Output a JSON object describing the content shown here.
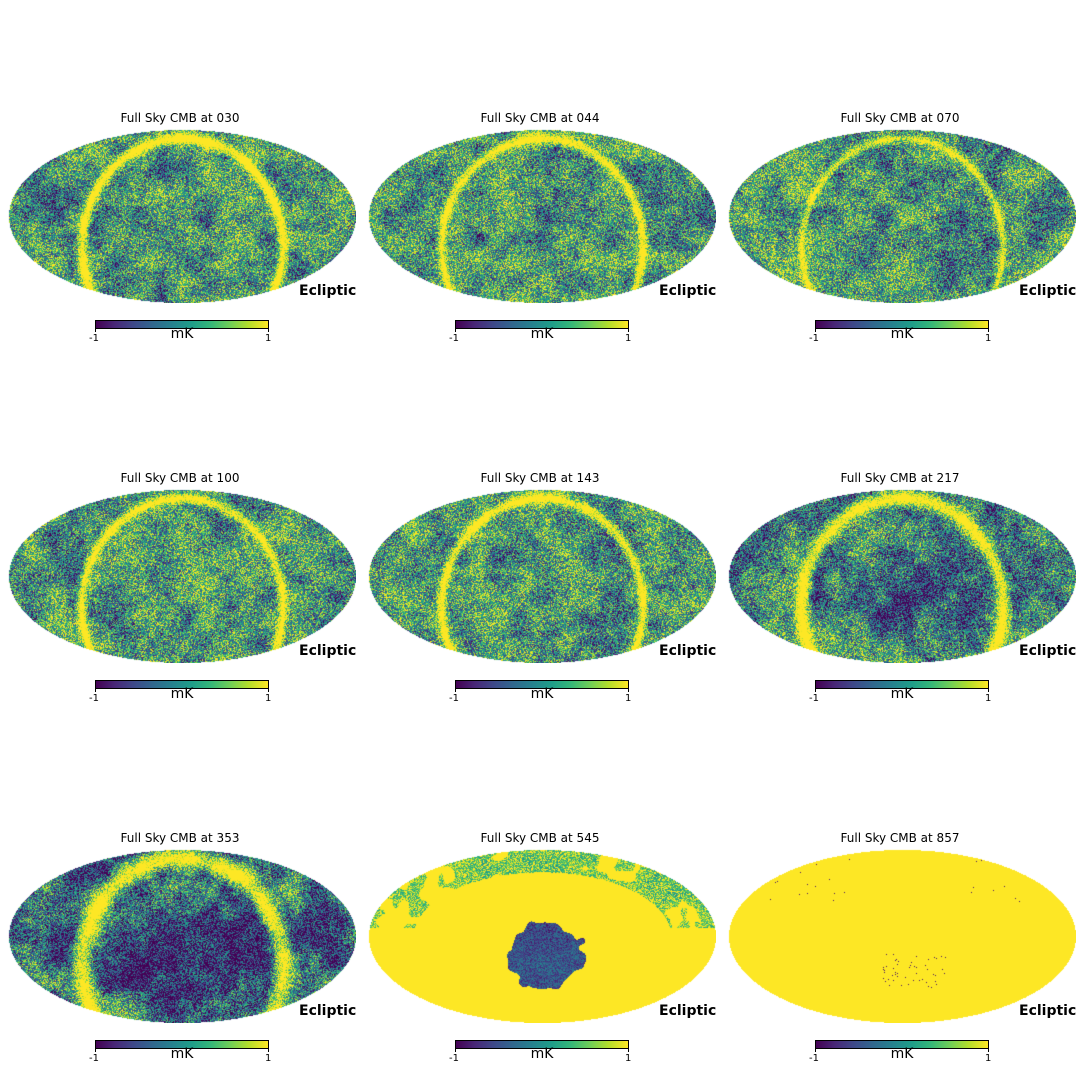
{
  "colormap": [
    "#440154",
    "#482878",
    "#3e4a89",
    "#31688e",
    "#26828e",
    "#1f9e89",
    "#35b779",
    "#6ece58",
    "#b5de2b",
    "#fde725"
  ],
  "panels": [
    {
      "title": "Full Sky CMB at 030",
      "projection_label": "Ecliptic",
      "unit": "mK",
      "min_label": "-1",
      "max_label": "1",
      "yellow_level": 0.14,
      "dark_level": 0.1,
      "band_strength": 1.0,
      "band_width": 1.0
    },
    {
      "title": "Full Sky CMB at 044",
      "projection_label": "Ecliptic",
      "unit": "mK",
      "min_label": "-1",
      "max_label": "1",
      "yellow_level": 0.16,
      "dark_level": 0.06,
      "band_strength": 0.85,
      "band_width": 0.85
    },
    {
      "title": "Full Sky CMB at 070",
      "projection_label": "Ecliptic",
      "unit": "mK",
      "min_label": "-1",
      "max_label": "1",
      "yellow_level": 0.16,
      "dark_level": 0.06,
      "band_strength": 0.7,
      "band_width": 0.7
    },
    {
      "title": "Full Sky CMB at 100",
      "projection_label": "Ecliptic",
      "unit": "mK",
      "min_label": "-1",
      "max_label": "1",
      "yellow_level": 0.18,
      "dark_level": 0.06,
      "band_strength": 0.85,
      "band_width": 0.85
    },
    {
      "title": "Full Sky CMB at 143",
      "projection_label": "Ecliptic",
      "unit": "mK",
      "min_label": "-1",
      "max_label": "1",
      "yellow_level": 0.18,
      "dark_level": 0.08,
      "band_strength": 0.9,
      "band_width": 0.9
    },
    {
      "title": "Full Sky CMB at 217",
      "projection_label": "Ecliptic",
      "unit": "mK",
      "min_label": "-1",
      "max_label": "1",
      "yellow_level": 0.12,
      "dark_level": 0.16,
      "band_strength": 1.0,
      "band_width": 1.3
    },
    {
      "title": "Full Sky CMB at 353",
      "projection_label": "Ecliptic",
      "unit": "mK",
      "min_label": "-1",
      "max_label": "1",
      "yellow_level": 0.08,
      "dark_level": 0.35,
      "band_strength": 1.0,
      "band_width": 1.8
    },
    {
      "title": "Full Sky CMB at 545",
      "projection_label": "Ecliptic",
      "unit": "mK",
      "min_label": "-1",
      "max_label": "1",
      "yellow_level": 0.75,
      "dark_level": 0.1,
      "band_strength": 1.0,
      "band_width": 1.0
    },
    {
      "title": "Full Sky CMB at 857",
      "projection_label": "Ecliptic",
      "unit": "mK",
      "min_label": "-1",
      "max_label": "1",
      "yellow_level": 0.99,
      "dark_level": 0.01,
      "band_strength": 1.0,
      "band_width": 1.0
    }
  ]
}
